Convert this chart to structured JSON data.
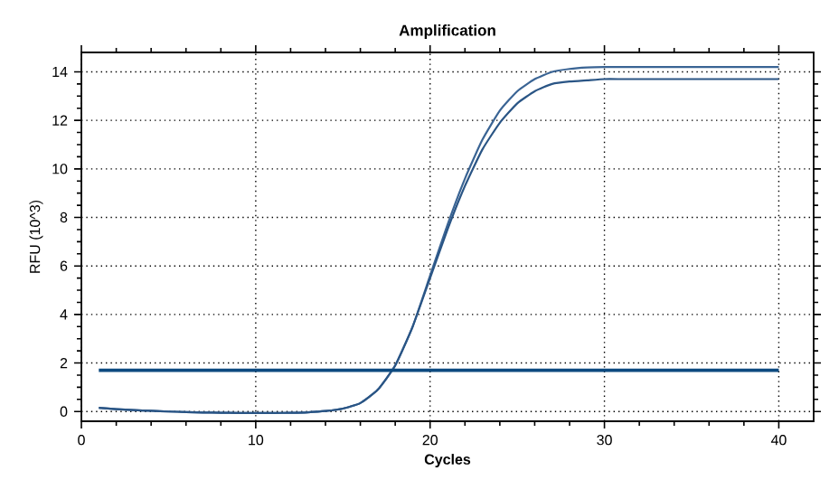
{
  "chart_data": {
    "type": "line",
    "title": "Amplification",
    "xlabel": "Cycles",
    "ylabel": "RFU (10^3)",
    "xlim": [
      0,
      42
    ],
    "ylim": [
      -0.4,
      14.8
    ],
    "xticks": [
      0,
      10,
      20,
      30,
      40
    ],
    "yticks": [
      0,
      2,
      4,
      6,
      8,
      10,
      12,
      14
    ],
    "grid": true,
    "marker": "none",
    "line_style": "solid",
    "x": [
      1,
      2,
      3,
      4,
      5,
      6,
      7,
      8,
      9,
      10,
      11,
      12,
      13,
      14,
      15,
      16,
      17,
      18,
      19,
      20,
      21,
      22,
      23,
      24,
      25,
      26,
      27,
      28,
      29,
      30,
      31,
      32,
      33,
      34,
      35,
      36,
      37,
      38,
      39,
      40
    ],
    "series": [
      {
        "color": "#3a6494",
        "values": [
          0.15,
          0.1,
          0.06,
          0.03,
          0.0,
          -0.02,
          -0.04,
          -0.05,
          -0.06,
          -0.06,
          -0.06,
          -0.05,
          -0.03,
          0.02,
          0.12,
          0.35,
          0.9,
          1.9,
          3.5,
          5.6,
          7.7,
          9.6,
          11.2,
          12.4,
          13.2,
          13.7,
          14.0,
          14.12,
          14.18,
          14.2,
          14.2,
          14.2,
          14.2,
          14.2,
          14.2,
          14.2,
          14.2,
          14.2,
          14.2,
          14.2
        ]
      },
      {
        "color": "#2a5585",
        "values": [
          0.15,
          0.1,
          0.06,
          0.03,
          0.0,
          -0.02,
          -0.04,
          -0.05,
          -0.06,
          -0.06,
          -0.06,
          -0.05,
          -0.03,
          0.02,
          0.12,
          0.35,
          0.9,
          1.9,
          3.5,
          5.5,
          7.5,
          9.3,
          10.8,
          11.9,
          12.7,
          13.2,
          13.5,
          13.6,
          13.65,
          13.7,
          13.7,
          13.7,
          13.7,
          13.7,
          13.7,
          13.7,
          13.7,
          13.7,
          13.7,
          13.7
        ]
      },
      {
        "color": "#0d4a80",
        "x": [
          1,
          40
        ],
        "values": [
          1.7,
          1.7
        ]
      }
    ]
  }
}
